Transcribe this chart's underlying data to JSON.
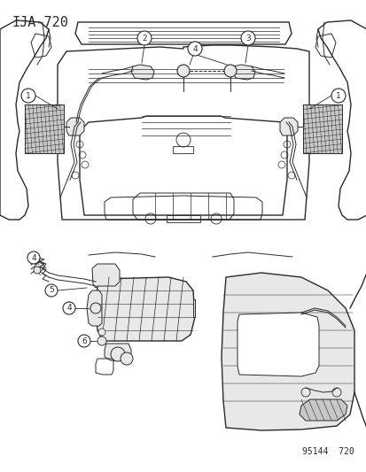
{
  "title": "IJA-720",
  "watermark": "95144  720",
  "bg_color": "#ffffff",
  "line_color": "#2a2a2a",
  "gray_fill": "#c8c8c8",
  "light_gray": "#e8e8e8",
  "title_fontsize": 11,
  "watermark_fontsize": 7,
  "fig_width": 4.14,
  "fig_height": 5.33,
  "dpi": 100
}
